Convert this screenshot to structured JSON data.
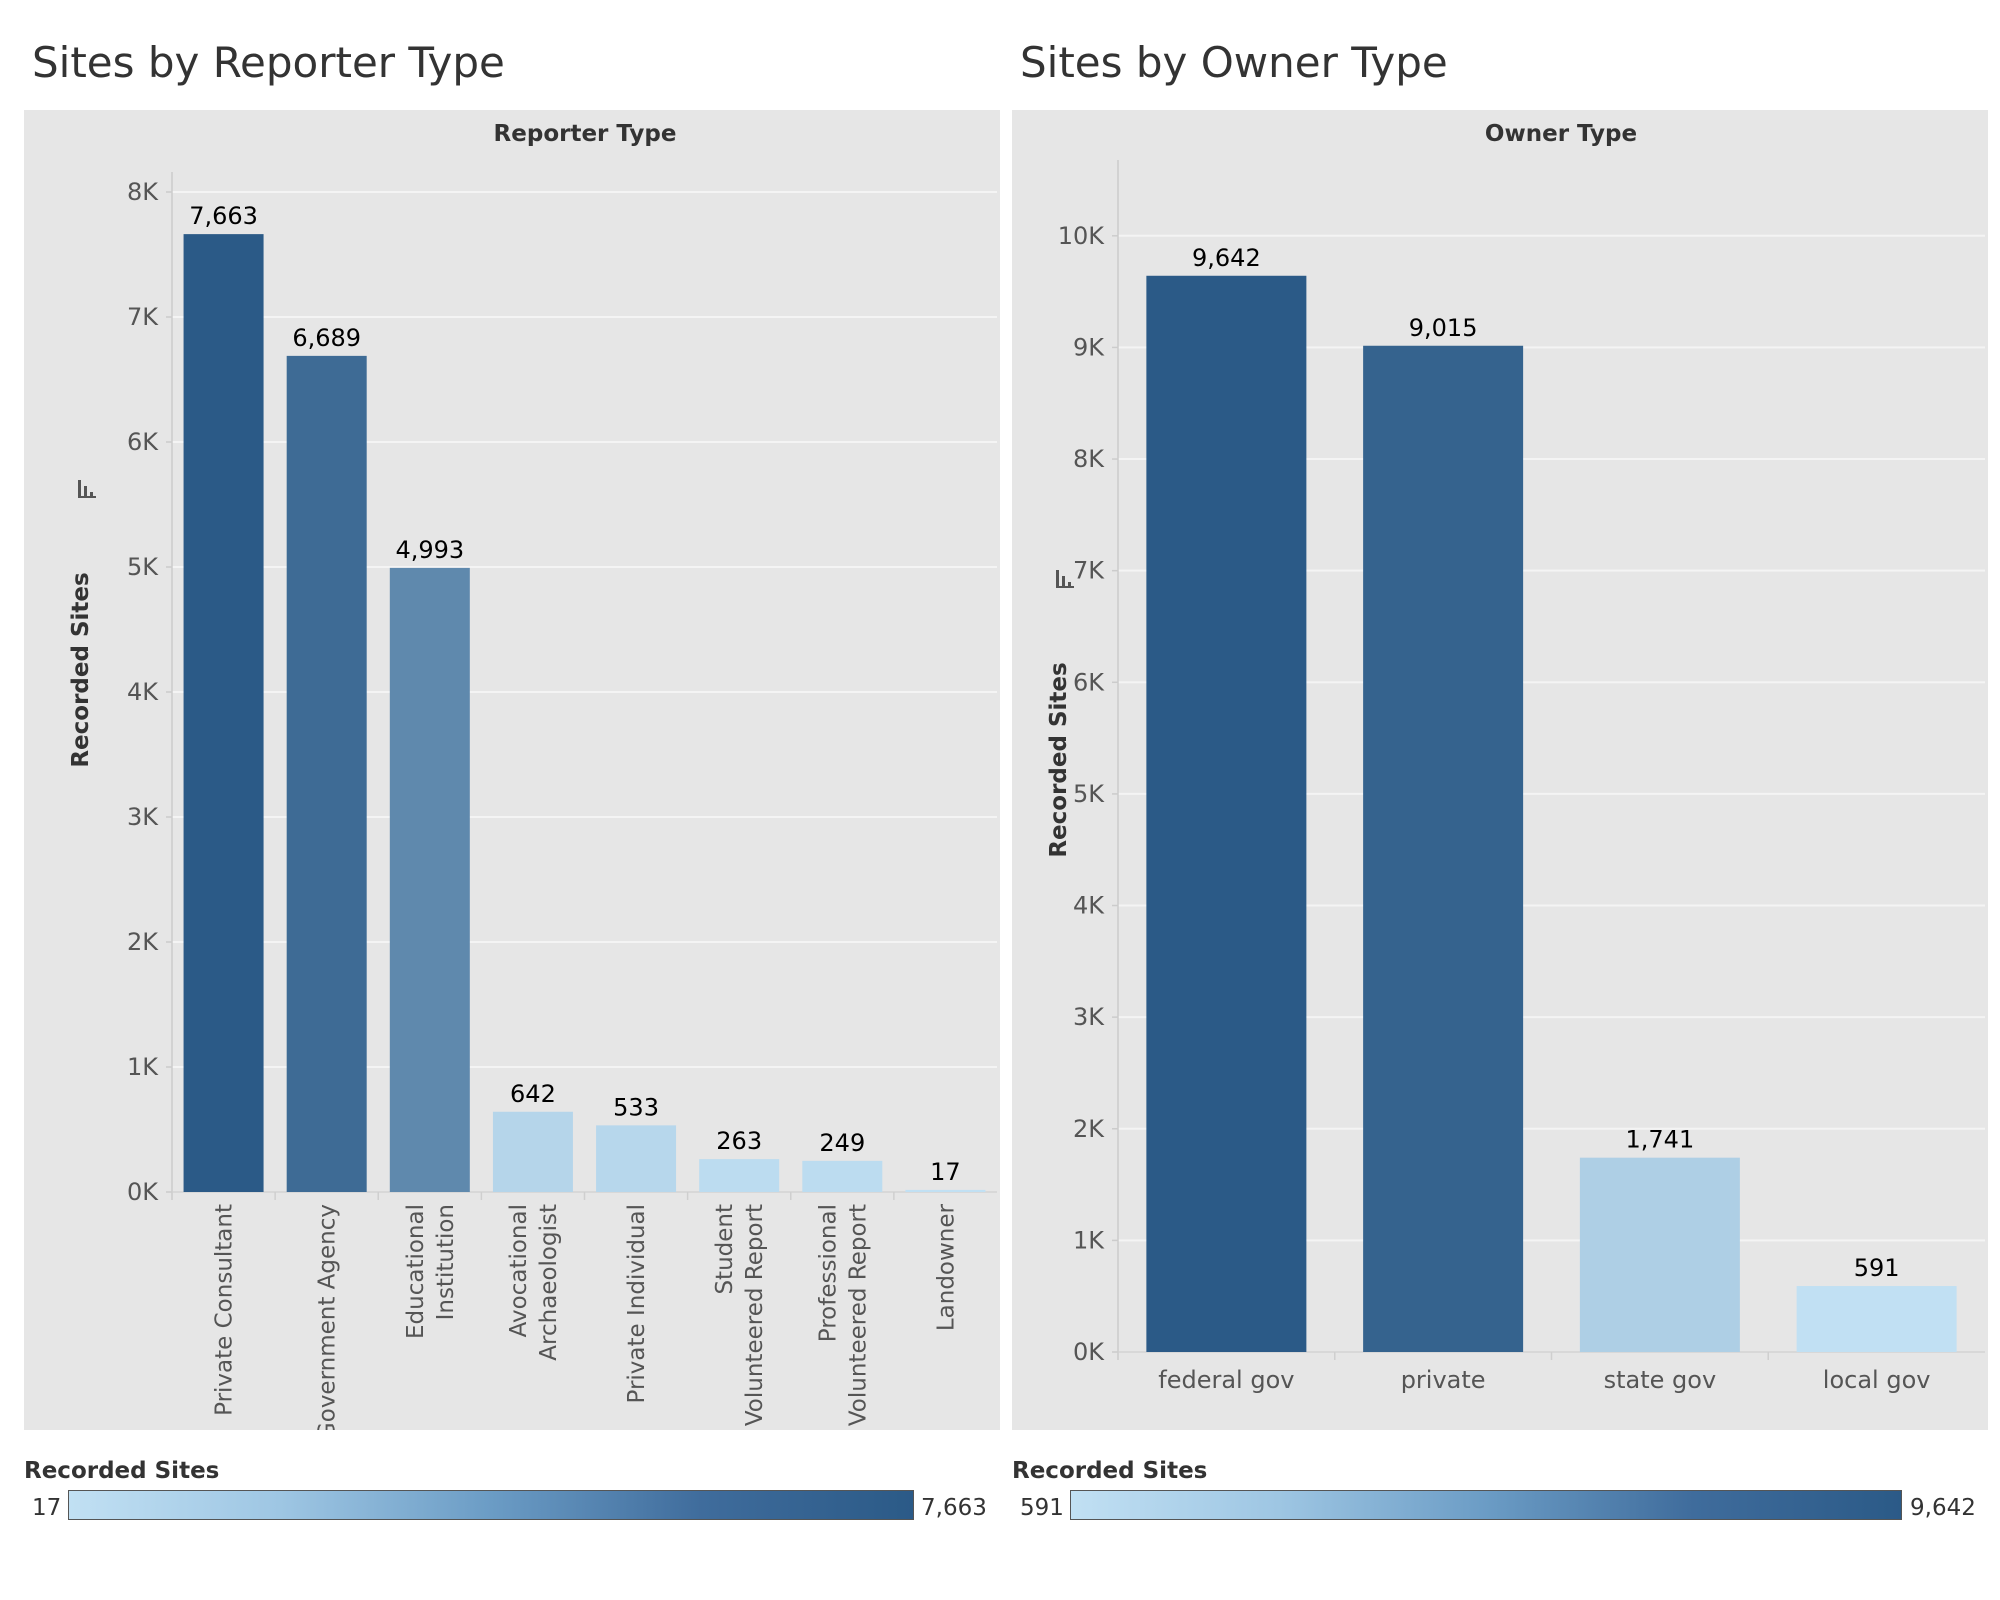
{
  "charts": [
    {
      "title": "Sites by Reporter Type",
      "chart_data": {
        "type": "bar",
        "header": "Reporter Type",
        "ylabel": "Recorded Sites",
        "ylim": [
          0,
          8000
        ],
        "yticks": [
          "0K",
          "1K",
          "2K",
          "3K",
          "4K",
          "5K",
          "6K",
          "7K",
          "8K"
        ],
        "categories": [
          [
            "Private Consultant"
          ],
          [
            "Government Agency"
          ],
          [
            "Educational",
            "Institution"
          ],
          [
            "Avocational",
            "Archaeologist"
          ],
          [
            "Private Individual"
          ],
          [
            "Student",
            "Volunteered Report"
          ],
          [
            "Professional",
            "Volunteered Report"
          ],
          [
            "Landowner"
          ]
        ],
        "values": [
          7663,
          6689,
          4993,
          642,
          533,
          263,
          249,
          17
        ],
        "value_labels": [
          "7,663",
          "6,689",
          "4,993",
          "642",
          "533",
          "263",
          "249",
          "17"
        ],
        "color_scale": [
          "#c1e0f3",
          "#2b5a87"
        ]
      },
      "legend": {
        "title": "Recorded Sites",
        "min": "17",
        "max": "7,663"
      }
    },
    {
      "title": "Sites by Owner Type",
      "chart_data": {
        "type": "bar",
        "header": "Owner Type",
        "ylabel": "Recorded Sites",
        "ylim": [
          0,
          10500
        ],
        "yticks": [
          "0K",
          "1K",
          "2K",
          "3K",
          "4K",
          "5K",
          "6K",
          "7K",
          "8K",
          "9K",
          "10K"
        ],
        "categories": [
          "federal gov",
          "private",
          "state gov",
          "local gov"
        ],
        "values": [
          9642,
          9015,
          1741,
          591
        ],
        "value_labels": [
          "9,642",
          "9,015",
          "1,741",
          "591"
        ],
        "color_scale": [
          "#c1e0f3",
          "#2b5a87"
        ]
      },
      "legend": {
        "title": "Recorded Sites",
        "min": "591",
        "max": "9,642"
      }
    }
  ]
}
